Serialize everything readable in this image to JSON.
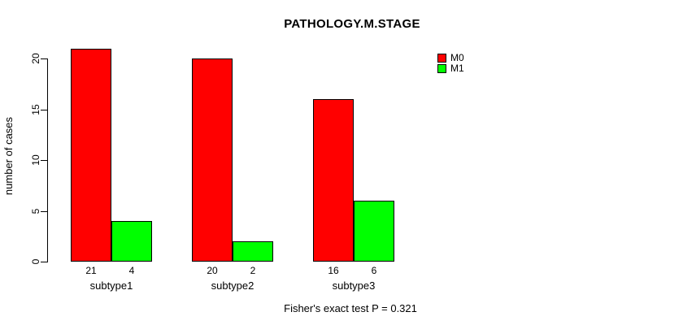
{
  "chart_data": {
    "type": "bar",
    "title": "PATHOLOGY.M.STAGE",
    "xlabel": "",
    "ylabel": "number of cases",
    "categories": [
      "subtype1",
      "subtype2",
      "subtype3"
    ],
    "series": [
      {
        "name": "M0",
        "color": "#ff0000",
        "values": [
          21,
          20,
          16
        ]
      },
      {
        "name": "M1",
        "color": "#00ff00",
        "values": [
          4,
          2,
          6
        ]
      }
    ],
    "yticks": [
      0,
      5,
      10,
      15,
      20
    ],
    "ylim": [
      0,
      20
    ],
    "grid": false,
    "legend_position": "top-right",
    "legend_entries": [
      "M0",
      "M1"
    ],
    "bar_value_labels_shown": true,
    "annotation": "Fisher's exact test P = 0.321"
  }
}
